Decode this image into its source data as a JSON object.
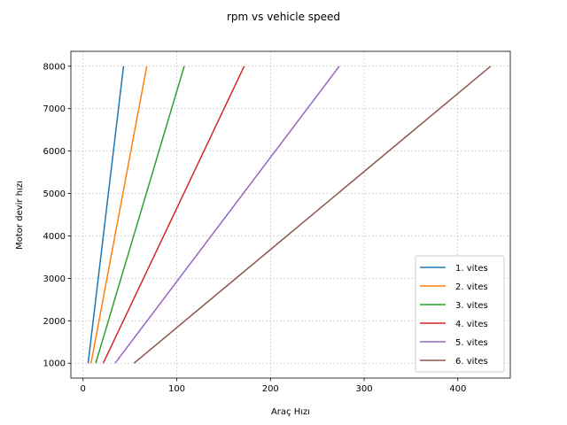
{
  "chart_data": {
    "type": "line",
    "title": "rpm vs vehicle speed",
    "xlabel": "Araç Hızı",
    "ylabel": "Motor devir hızı",
    "xlim": [
      -13,
      456
    ],
    "ylim": [
      650,
      8350
    ],
    "xticks": [
      0,
      100,
      200,
      300,
      400
    ],
    "yticks": [
      1000,
      2000,
      3000,
      4000,
      5000,
      6000,
      7000,
      8000
    ],
    "grid": true,
    "grid_style": "dashed",
    "legend_position": "lower right",
    "series": [
      {
        "name": "1. vites",
        "color": "#1f77b4",
        "x": [
          5.4,
          43.2
        ],
        "y": [
          1000,
          8000
        ]
      },
      {
        "name": "2. vites",
        "color": "#ff7f0e",
        "x": [
          8.5,
          68.0
        ],
        "y": [
          1000,
          8000
        ]
      },
      {
        "name": "3. vites",
        "color": "#2ca02c",
        "x": [
          13.5,
          108.0
        ],
        "y": [
          1000,
          8000
        ]
      },
      {
        "name": "4. vites",
        "color": "#d62728",
        "x": [
          21.5,
          172.0
        ],
        "y": [
          1000,
          8000
        ]
      },
      {
        "name": "5. vites",
        "color": "#9467bd",
        "x": [
          34.2,
          273.5
        ],
        "y": [
          1000,
          8000
        ]
      },
      {
        "name": "6. vites",
        "color": "#8c564b",
        "x": [
          54.4,
          435.0
        ],
        "y": [
          1000,
          8000
        ]
      }
    ]
  }
}
